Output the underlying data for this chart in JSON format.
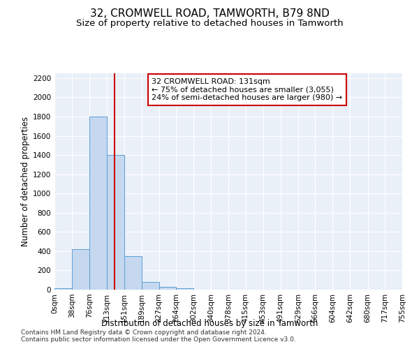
{
  "title_line1": "32, CROMWELL ROAD, TAMWORTH, B79 8ND",
  "title_line2": "Size of property relative to detached houses in Tamworth",
  "xlabel": "Distribution of detached houses by size in Tamworth",
  "ylabel": "Number of detached properties",
  "bar_edges": [
    0,
    38,
    76,
    113,
    151,
    189,
    227,
    264,
    302,
    340,
    378,
    415,
    453,
    491,
    529,
    566,
    604,
    642,
    680,
    717,
    755
  ],
  "bar_values": [
    15,
    420,
    1800,
    1400,
    350,
    80,
    30,
    18,
    0,
    0,
    0,
    0,
    0,
    0,
    0,
    0,
    0,
    0,
    0,
    0
  ],
  "bar_color": "#c5d8f0",
  "bar_edge_color": "#5a9fd4",
  "vline_x": 131,
  "vline_color": "#cc0000",
  "annotation_text": "32 CROMWELL ROAD: 131sqm\n← 75% of detached houses are smaller (3,055)\n24% of semi-detached houses are larger (980) →",
  "annotation_box_color": "white",
  "annotation_box_edge_color": "#cc0000",
  "ylim": [
    0,
    2250
  ],
  "yticks": [
    0,
    200,
    400,
    600,
    800,
    1000,
    1200,
    1400,
    1600,
    1800,
    2000,
    2200
  ],
  "bg_color": "#eaf0f8",
  "footer_line1": "Contains HM Land Registry data © Crown copyright and database right 2024.",
  "footer_line2": "Contains public sector information licensed under the Open Government Licence v3.0.",
  "title_fontsize": 11,
  "subtitle_fontsize": 9.5,
  "axis_label_fontsize": 8.5,
  "tick_fontsize": 7.5,
  "annotation_fontsize": 8,
  "footer_fontsize": 6.5
}
